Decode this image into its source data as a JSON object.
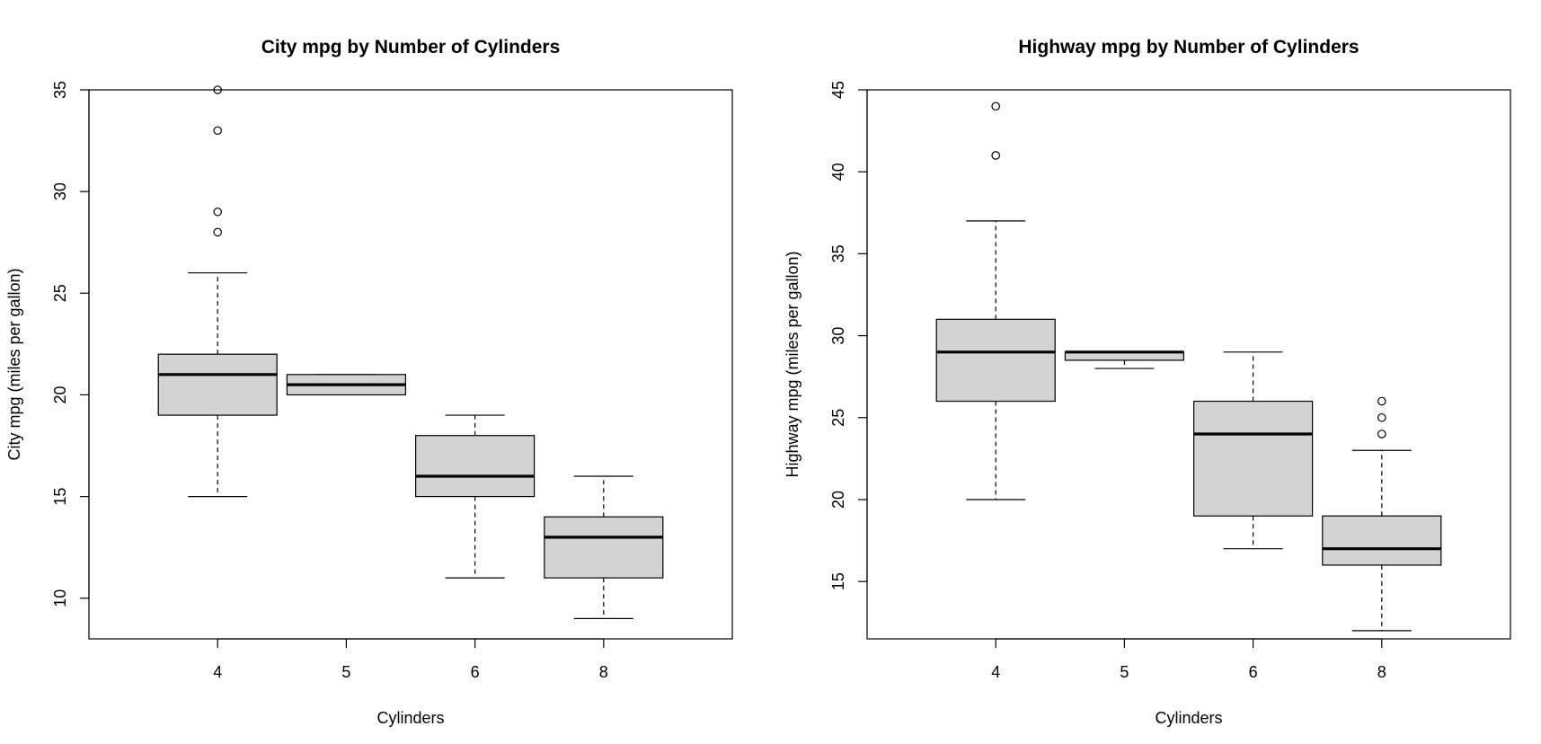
{
  "chart_data": [
    {
      "type": "boxplot",
      "title": "City mpg by Number of Cylinders",
      "xlabel": "Cylinders",
      "ylabel": "City mpg (miles per gallon)",
      "ylim": [
        8,
        35
      ],
      "yticks": [
        10,
        15,
        20,
        25,
        30,
        35
      ],
      "categories": [
        "4",
        "5",
        "6",
        "8"
      ],
      "boxes": [
        {
          "category": "4",
          "min": 15,
          "q1": 19,
          "median": 21,
          "q3": 22,
          "max": 26,
          "outliers": [
            28,
            29,
            33,
            35
          ]
        },
        {
          "category": "5",
          "min": 20,
          "q1": 20,
          "median": 20.5,
          "q3": 21,
          "max": 21,
          "outliers": []
        },
        {
          "category": "6",
          "min": 11,
          "q1": 15,
          "median": 16,
          "q3": 18,
          "max": 19,
          "outliers": []
        },
        {
          "category": "8",
          "min": 9,
          "q1": 11,
          "median": 13,
          "q3": 14,
          "max": 16,
          "outliers": []
        }
      ],
      "box_color": "#d3d3d3"
    },
    {
      "type": "boxplot",
      "title": "Highway mpg by Number of Cylinders",
      "xlabel": "Cylinders",
      "ylabel": "Highway mpg (miles per gallon)",
      "ylim": [
        11.5,
        45
      ],
      "yticks": [
        15,
        20,
        25,
        30,
        35,
        40,
        45
      ],
      "categories": [
        "4",
        "5",
        "6",
        "8"
      ],
      "boxes": [
        {
          "category": "4",
          "min": 20,
          "q1": 26,
          "median": 29,
          "q3": 31,
          "max": 37,
          "outliers": [
            41,
            44
          ]
        },
        {
          "category": "5",
          "min": 28,
          "q1": 28.5,
          "median": 29,
          "q3": 29,
          "max": 29,
          "outliers": []
        },
        {
          "category": "6",
          "min": 17,
          "q1": 19,
          "median": 24,
          "q3": 26,
          "max": 29,
          "outliers": []
        },
        {
          "category": "8",
          "min": 12,
          "q1": 16,
          "median": 17,
          "q3": 19,
          "max": 23,
          "outliers": [
            24,
            25,
            26
          ]
        }
      ],
      "box_color": "#d3d3d3"
    }
  ]
}
